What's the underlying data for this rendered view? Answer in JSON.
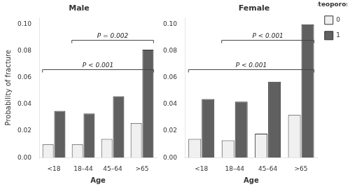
{
  "chart_data": [
    {
      "type": "bar",
      "title": "Male",
      "xlabel": "Age",
      "ylabel": "Probability of fracture",
      "categories": [
        "<18",
        "18–44",
        "45–64",
        ">65"
      ],
      "series": [
        {
          "name": "0",
          "color": "#f0f0f0",
          "values": [
            0.01,
            0.01,
            0.014,
            0.026
          ]
        },
        {
          "name": "1",
          "color": "#606060",
          "values": [
            0.035,
            0.033,
            0.046,
            0.081
          ]
        }
      ],
      "annotations": [
        {
          "text": "P = 0.002",
          "from": "18–44",
          "to": ">65",
          "y": 0.088
        },
        {
          "text": "P < 0.001",
          "from": "<18",
          "to": ">65",
          "y": 0.066
        }
      ],
      "ylim": [
        0,
        0.105
      ],
      "yticks": [
        {
          "value": 0,
          "label": "0.00"
        },
        {
          "value": 0.02,
          "label": "0.02"
        },
        {
          "value": 0.04,
          "label": "0.04"
        },
        {
          "value": 0.06,
          "label": "0.06"
        },
        {
          "value": 0.08,
          "label": "0.08"
        },
        {
          "value": 0.1,
          "label": "0.10"
        }
      ],
      "grid": false
    },
    {
      "type": "bar",
      "title": "Female",
      "xlabel": "Age",
      "categories": [
        "<18",
        "18–44",
        "45–64",
        ">65"
      ],
      "series": [
        {
          "name": "0",
          "color": "#f0f0f0",
          "values": [
            0.014,
            0.013,
            0.018,
            0.032
          ]
        },
        {
          "name": "1",
          "color": "#606060",
          "values": [
            0.044,
            0.042,
            0.057,
            0.1
          ]
        }
      ],
      "annotations": [
        {
          "text": "P < 0.001",
          "from": "18–44",
          "to": ">65",
          "y": 0.088
        },
        {
          "text": "P < 0.001",
          "from": "<18",
          "to": ">65",
          "y": 0.066
        }
      ],
      "ylim": [
        0,
        0.105
      ],
      "yticks": [
        {
          "value": 0,
          "label": "0.00"
        },
        {
          "value": 0.02,
          "label": "0.02"
        },
        {
          "value": 0.04,
          "label": "0.04"
        },
        {
          "value": 0.06,
          "label": "0.06"
        },
        {
          "value": 0.08,
          "label": "0.08"
        },
        {
          "value": 0.1,
          "label": "0.10"
        }
      ],
      "grid": false,
      "legend": "right",
      "legend_title": "Osteoporosis"
    }
  ]
}
